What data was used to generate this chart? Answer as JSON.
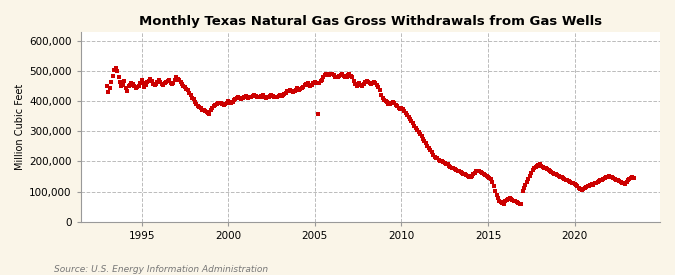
{
  "title": "Monthly Texas Natural Gas Gross Withdrawals from Gas Wells",
  "ylabel": "Million Cubic Feet",
  "source": "Source: U.S. Energy Information Administration",
  "background_color": "#FAF5E8",
  "plot_bg_color": "#FFFFFF",
  "line_color": "#CC0000",
  "ylim": [
    0,
    630000
  ],
  "yticks": [
    0,
    100000,
    200000,
    300000,
    400000,
    500000,
    600000
  ],
  "xtick_years": [
    1995,
    2000,
    2005,
    2010,
    2015,
    2020
  ],
  "data": {
    "1993-01": 450000,
    "1993-02": 430000,
    "1993-03": 445000,
    "1993-04": 465000,
    "1993-05": 485000,
    "1993-06": 505000,
    "1993-07": 510000,
    "1993-08": 500000,
    "1993-09": 480000,
    "1993-10": 465000,
    "1993-11": 450000,
    "1993-12": 455000,
    "1994-01": 468000,
    "1994-02": 445000,
    "1994-03": 435000,
    "1994-04": 450000,
    "1994-05": 455000,
    "1994-06": 462000,
    "1994-07": 458000,
    "1994-08": 450000,
    "1994-09": 443000,
    "1994-10": 448000,
    "1994-11": 452000,
    "1994-12": 460000,
    "1995-01": 472000,
    "1995-02": 460000,
    "1995-03": 448000,
    "1995-04": 453000,
    "1995-05": 463000,
    "1995-06": 468000,
    "1995-07": 473000,
    "1995-08": 468000,
    "1995-09": 458000,
    "1995-10": 453000,
    "1995-11": 458000,
    "1995-12": 465000,
    "1996-01": 472000,
    "1996-02": 465000,
    "1996-03": 458000,
    "1996-04": 453000,
    "1996-05": 460000,
    "1996-06": 465000,
    "1996-07": 468000,
    "1996-08": 470000,
    "1996-09": 462000,
    "1996-10": 458000,
    "1996-11": 462000,
    "1996-12": 472000,
    "1997-01": 480000,
    "1997-02": 474000,
    "1997-03": 470000,
    "1997-04": 464000,
    "1997-05": 457000,
    "1997-06": 452000,
    "1997-07": 447000,
    "1997-08": 442000,
    "1997-09": 437000,
    "1997-10": 427000,
    "1997-11": 420000,
    "1997-12": 412000,
    "1998-01": 407000,
    "1998-02": 397000,
    "1998-03": 390000,
    "1998-04": 384000,
    "1998-05": 380000,
    "1998-06": 377000,
    "1998-07": 372000,
    "1998-08": 370000,
    "1998-09": 367000,
    "1998-10": 364000,
    "1998-11": 360000,
    "1998-12": 357000,
    "1999-01": 370000,
    "1999-02": 378000,
    "1999-03": 383000,
    "1999-04": 388000,
    "1999-05": 391000,
    "1999-06": 393000,
    "1999-07": 395000,
    "1999-08": 393000,
    "1999-09": 390000,
    "1999-10": 387000,
    "1999-11": 390000,
    "1999-12": 393000,
    "2000-01": 400000,
    "2000-02": 397000,
    "2000-03": 395000,
    "2000-04": 398000,
    "2000-05": 403000,
    "2000-06": 408000,
    "2000-07": 411000,
    "2000-08": 415000,
    "2000-09": 411000,
    "2000-10": 408000,
    "2000-11": 411000,
    "2000-12": 415000,
    "2001-01": 418000,
    "2001-02": 413000,
    "2001-03": 410000,
    "2001-04": 413000,
    "2001-05": 415000,
    "2001-06": 418000,
    "2001-07": 420000,
    "2001-08": 418000,
    "2001-09": 415000,
    "2001-10": 413000,
    "2001-11": 415000,
    "2001-12": 418000,
    "2002-01": 420000,
    "2002-02": 415000,
    "2002-03": 410000,
    "2002-04": 413000,
    "2002-05": 415000,
    "2002-06": 418000,
    "2002-07": 420000,
    "2002-08": 418000,
    "2002-09": 415000,
    "2002-10": 413000,
    "2002-11": 415000,
    "2002-12": 418000,
    "2003-01": 420000,
    "2003-02": 418000,
    "2003-03": 420000,
    "2003-04": 423000,
    "2003-05": 428000,
    "2003-06": 433000,
    "2003-07": 435000,
    "2003-08": 438000,
    "2003-09": 435000,
    "2003-10": 431000,
    "2003-11": 433000,
    "2003-12": 438000,
    "2004-01": 443000,
    "2004-02": 438000,
    "2004-03": 440000,
    "2004-04": 445000,
    "2004-05": 448000,
    "2004-06": 453000,
    "2004-07": 458000,
    "2004-08": 461000,
    "2004-09": 455000,
    "2004-10": 451000,
    "2004-11": 455000,
    "2004-12": 461000,
    "2005-01": 465000,
    "2005-02": 461000,
    "2005-03": 358000,
    "2005-04": 462000,
    "2005-05": 467000,
    "2005-06": 472000,
    "2005-07": 482000,
    "2005-08": 487000,
    "2005-09": 492000,
    "2005-10": 490000,
    "2005-11": 487000,
    "2005-12": 490000,
    "2006-01": 492000,
    "2006-02": 487000,
    "2006-03": 482000,
    "2006-04": 480000,
    "2006-05": 482000,
    "2006-06": 484000,
    "2006-07": 487000,
    "2006-08": 490000,
    "2006-09": 484000,
    "2006-10": 480000,
    "2006-11": 482000,
    "2006-12": 487000,
    "2007-01": 490000,
    "2007-02": 484000,
    "2007-03": 480000,
    "2007-04": 467000,
    "2007-05": 457000,
    "2007-06": 450000,
    "2007-07": 454000,
    "2007-08": 460000,
    "2007-09": 454000,
    "2007-10": 450000,
    "2007-11": 457000,
    "2007-12": 464000,
    "2008-01": 467000,
    "2008-02": 464000,
    "2008-03": 460000,
    "2008-04": 457000,
    "2008-05": 460000,
    "2008-06": 464000,
    "2008-07": 460000,
    "2008-08": 454000,
    "2008-09": 447000,
    "2008-10": 437000,
    "2008-11": 422000,
    "2008-12": 410000,
    "2009-01": 405000,
    "2009-02": 400000,
    "2009-03": 396000,
    "2009-04": 392000,
    "2009-05": 390000,
    "2009-06": 393000,
    "2009-07": 396000,
    "2009-08": 393000,
    "2009-09": 388000,
    "2009-10": 383000,
    "2009-11": 378000,
    "2009-12": 373000,
    "2010-01": 378000,
    "2010-02": 373000,
    "2010-03": 368000,
    "2010-04": 362000,
    "2010-05": 355000,
    "2010-06": 349000,
    "2010-07": 342000,
    "2010-08": 335000,
    "2010-09": 327000,
    "2010-10": 319000,
    "2010-11": 312000,
    "2010-12": 305000,
    "2011-01": 298000,
    "2011-02": 290000,
    "2011-03": 283000,
    "2011-04": 276000,
    "2011-05": 268000,
    "2011-06": 260000,
    "2011-07": 253000,
    "2011-08": 246000,
    "2011-09": 238000,
    "2011-10": 230000,
    "2011-11": 223000,
    "2011-12": 216000,
    "2012-01": 213000,
    "2012-02": 210000,
    "2012-03": 206000,
    "2012-04": 203000,
    "2012-05": 200000,
    "2012-06": 198000,
    "2012-07": 196000,
    "2012-08": 193000,
    "2012-09": 190000,
    "2012-10": 186000,
    "2012-11": 183000,
    "2012-12": 180000,
    "2013-01": 178000,
    "2013-02": 176000,
    "2013-03": 173000,
    "2013-04": 170000,
    "2013-05": 168000,
    "2013-06": 166000,
    "2013-07": 163000,
    "2013-08": 160000,
    "2013-09": 158000,
    "2013-10": 156000,
    "2013-11": 153000,
    "2013-12": 150000,
    "2014-01": 148000,
    "2014-02": 153000,
    "2014-03": 158000,
    "2014-04": 163000,
    "2014-05": 168000,
    "2014-06": 170000,
    "2014-07": 168000,
    "2014-08": 166000,
    "2014-09": 163000,
    "2014-10": 160000,
    "2014-11": 156000,
    "2014-12": 153000,
    "2015-01": 150000,
    "2015-02": 146000,
    "2015-03": 143000,
    "2015-04": 133000,
    "2015-05": 118000,
    "2015-06": 103000,
    "2015-07": 88000,
    "2015-08": 78000,
    "2015-09": 70000,
    "2015-10": 66000,
    "2015-11": 63000,
    "2015-12": 60000,
    "2016-01": 68000,
    "2016-02": 73000,
    "2016-03": 76000,
    "2016-04": 78000,
    "2016-05": 76000,
    "2016-06": 73000,
    "2016-07": 70000,
    "2016-08": 68000,
    "2016-09": 66000,
    "2016-10": 63000,
    "2016-11": 60000,
    "2016-12": 58000,
    "2017-01": 103000,
    "2017-02": 113000,
    "2017-03": 123000,
    "2017-04": 133000,
    "2017-05": 143000,
    "2017-06": 153000,
    "2017-07": 163000,
    "2017-08": 173000,
    "2017-09": 178000,
    "2017-10": 183000,
    "2017-11": 186000,
    "2017-12": 188000,
    "2018-01": 190000,
    "2018-02": 186000,
    "2018-03": 183000,
    "2018-04": 180000,
    "2018-05": 178000,
    "2018-06": 176000,
    "2018-07": 173000,
    "2018-08": 170000,
    "2018-09": 166000,
    "2018-10": 163000,
    "2018-11": 160000,
    "2018-12": 158000,
    "2019-01": 156000,
    "2019-02": 153000,
    "2019-03": 150000,
    "2019-04": 148000,
    "2019-05": 146000,
    "2019-06": 143000,
    "2019-07": 140000,
    "2019-08": 138000,
    "2019-09": 136000,
    "2019-10": 133000,
    "2019-11": 130000,
    "2019-12": 128000,
    "2020-01": 126000,
    "2020-02": 123000,
    "2020-03": 120000,
    "2020-04": 113000,
    "2020-05": 108000,
    "2020-06": 106000,
    "2020-07": 110000,
    "2020-08": 113000,
    "2020-09": 116000,
    "2020-10": 118000,
    "2020-11": 120000,
    "2020-12": 123000,
    "2021-01": 126000,
    "2021-02": 123000,
    "2021-03": 128000,
    "2021-04": 130000,
    "2021-05": 133000,
    "2021-06": 136000,
    "2021-07": 138000,
    "2021-08": 140000,
    "2021-09": 143000,
    "2021-10": 146000,
    "2021-11": 148000,
    "2021-12": 150000,
    "2022-01": 153000,
    "2022-02": 150000,
    "2022-03": 148000,
    "2022-04": 146000,
    "2022-05": 143000,
    "2022-06": 140000,
    "2022-07": 138000,
    "2022-08": 136000,
    "2022-09": 133000,
    "2022-10": 130000,
    "2022-11": 128000,
    "2022-12": 126000,
    "2023-01": 133000,
    "2023-02": 138000,
    "2023-03": 143000,
    "2023-04": 146000,
    "2023-05": 148000,
    "2023-06": 146000
  }
}
